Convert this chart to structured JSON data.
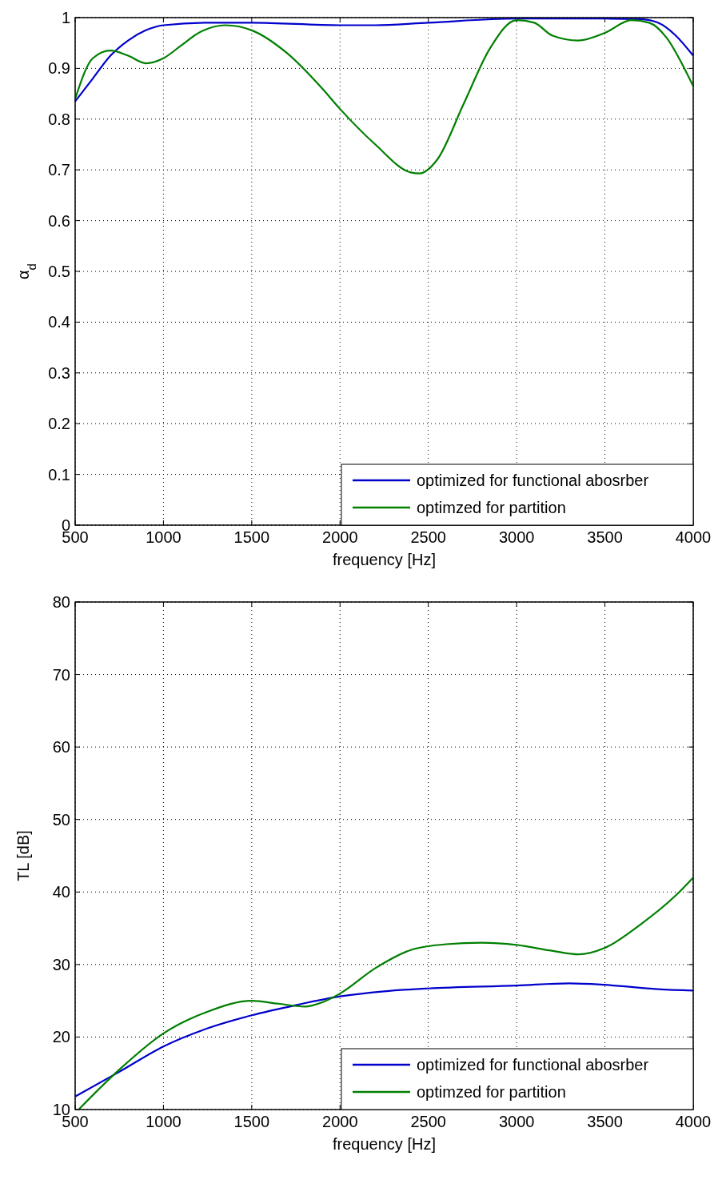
{
  "chart_data": [
    {
      "type": "line",
      "xlabel": "frequency [Hz]",
      "ylabel": "α$_{d}$",
      "xlim": [
        500,
        4000
      ],
      "xticks": [
        500,
        1000,
        1500,
        2000,
        2500,
        3000,
        3500,
        4000
      ],
      "ylim": [
        0,
        1
      ],
      "yticks": [
        0,
        0.1,
        0.2,
        0.3,
        0.4,
        0.5,
        0.6,
        0.7,
        0.8,
        0.9,
        1
      ],
      "grid": true,
      "legend": "bottom right",
      "series": [
        {
          "name": "optimized for functional abosrber",
          "color": "#0000cc",
          "x": [
            500,
            600,
            700,
            800,
            900,
            1000,
            1250,
            1500,
            2000,
            2200,
            2500,
            3000,
            3500,
            3700,
            3800,
            3900,
            4000
          ],
          "values": [
            0.835,
            0.88,
            0.925,
            0.955,
            0.975,
            0.985,
            0.99,
            0.99,
            0.985,
            0.985,
            0.99,
            0.998,
            0.998,
            0.997,
            0.99,
            0.965,
            0.925
          ]
        },
        {
          "name": "optimzed for partition",
          "color": "#007f00",
          "x": [
            500,
            600,
            700,
            800,
            900,
            1000,
            1100,
            1200,
            1350,
            1500,
            1700,
            1900,
            2000,
            2200,
            2400,
            2450,
            2550,
            2700,
            2850,
            3000,
            3100,
            3200,
            3350,
            3500,
            3650,
            3750,
            3850,
            3950,
            4000
          ],
          "values": [
            0.84,
            0.92,
            0.935,
            0.925,
            0.91,
            0.92,
            0.945,
            0.97,
            0.985,
            0.975,
            0.93,
            0.86,
            0.82,
            0.75,
            0.695,
            0.693,
            0.72,
            0.83,
            0.94,
            0.995,
            0.99,
            0.965,
            0.955,
            0.97,
            0.995,
            0.99,
            0.96,
            0.9,
            0.865
          ]
        }
      ]
    },
    {
      "type": "line",
      "xlabel": "frequency [Hz]",
      "ylabel": "TL [dB]",
      "xlim": [
        500,
        4000
      ],
      "xticks": [
        500,
        1000,
        1500,
        2000,
        2500,
        3000,
        3500,
        4000
      ],
      "ylim": [
        10,
        80
      ],
      "yticks": [
        10,
        20,
        30,
        40,
        50,
        60,
        70,
        80
      ],
      "grid": true,
      "legend": "bottom right",
      "series": [
        {
          "name": "optimized for functional abosrber",
          "color": "#0000cc",
          "x": [
            500,
            750,
            1000,
            1250,
            1500,
            1750,
            2000,
            2250,
            2500,
            3000,
            3300,
            3500,
            3800,
            4000
          ],
          "values": [
            11.8,
            15.2,
            18.7,
            21.2,
            23,
            24.4,
            25.6,
            26.3,
            26.7,
            27.1,
            27.4,
            27.2,
            26.6,
            26.4
          ]
        },
        {
          "name": "optimzed for partition",
          "color": "#007f00",
          "x": [
            520,
            750,
            1000,
            1250,
            1500,
            1650,
            1800,
            1900,
            2000,
            2200,
            2400,
            2600,
            2800,
            3000,
            3200,
            3350,
            3500,
            3700,
            3900,
            4000
          ],
          "values": [
            10,
            15.5,
            20.5,
            23.5,
            25,
            24.6,
            24.2,
            24.8,
            26,
            29.5,
            32,
            32.8,
            33,
            32.7,
            31.9,
            31.4,
            32.3,
            35.5,
            39.5,
            42
          ]
        }
      ]
    }
  ]
}
